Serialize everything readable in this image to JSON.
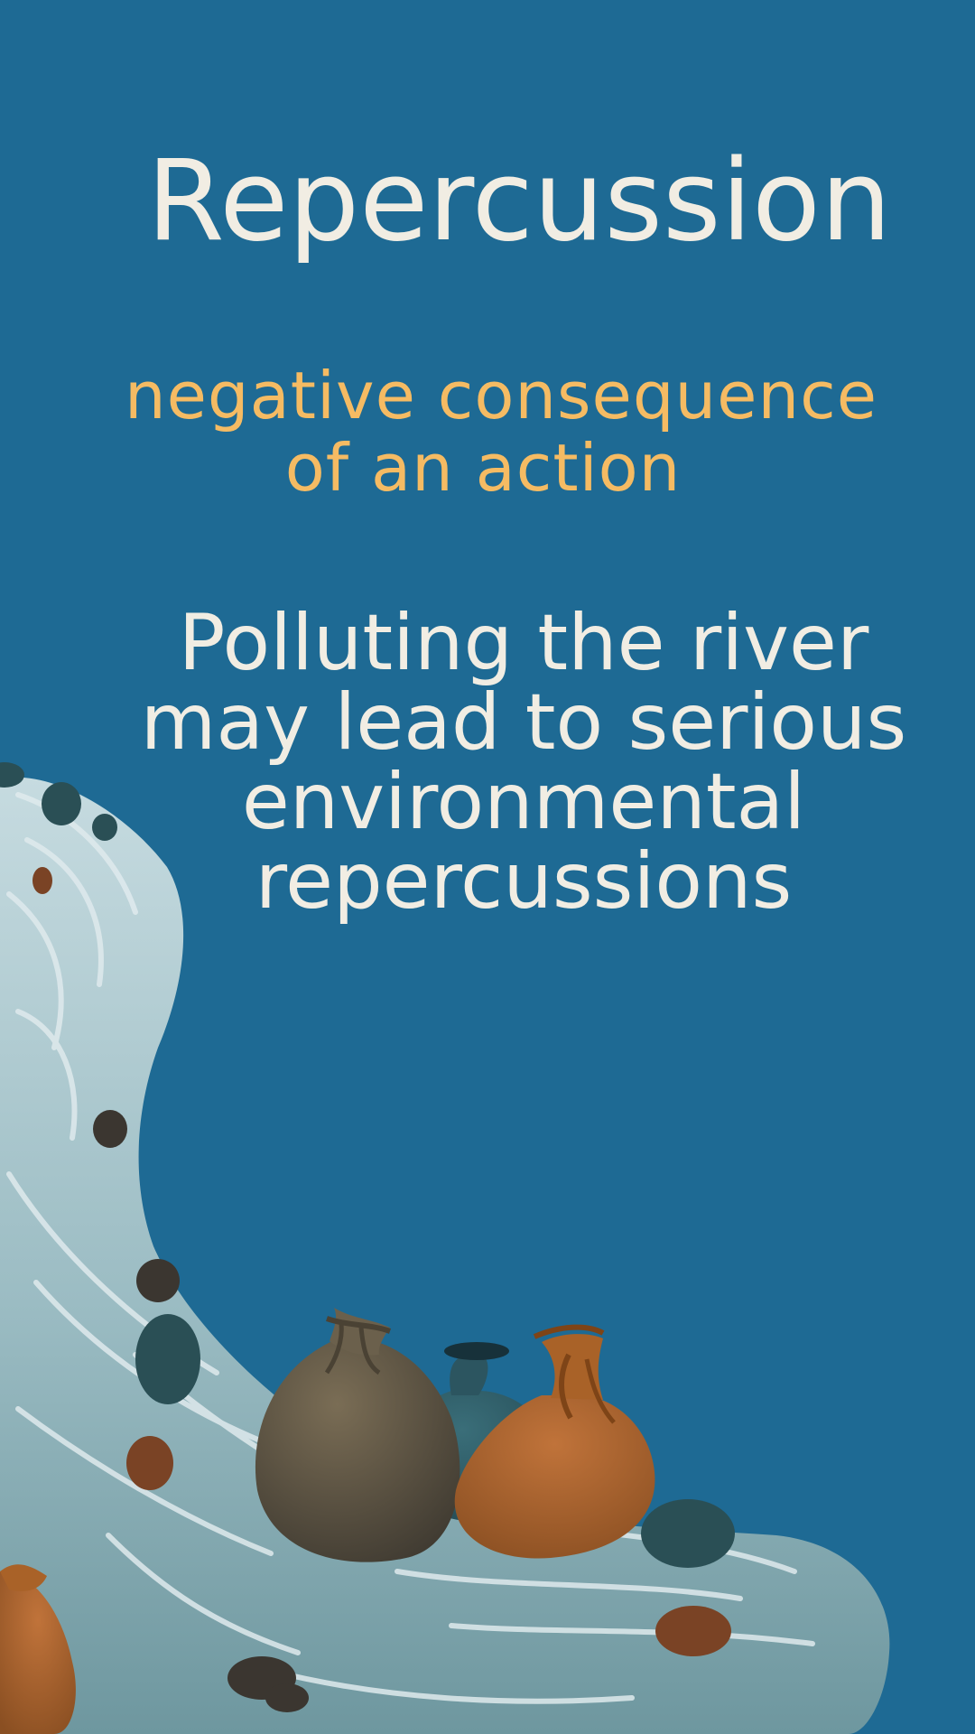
{
  "colors": {
    "background": "#1e6a94",
    "title_text": "#f1ede3",
    "definition_text": "#f5bb63",
    "example_text": "#f1ede3",
    "river_light": "#b7cfd6",
    "river_dark": "#6f9aa3",
    "bag_brown": "#5f5444",
    "bag_orange": "#a7612a",
    "bag_teal": "#2f5e6a",
    "rock_dark": "#3b3630",
    "rock_teal": "#2a4f55",
    "rock_rust": "#7a4325"
  },
  "card": {
    "title": "Repercussion",
    "definition_lines": [
      "negative consequence",
      "of an action"
    ],
    "example_lines": [
      "Polluting the river",
      "may lead to serious",
      "environmental",
      "repercussions"
    ]
  },
  "illustration": {
    "river_icon": "river-icon",
    "bag_icon": "garbage-bag-icon",
    "rock_icon": "rock-icon"
  }
}
